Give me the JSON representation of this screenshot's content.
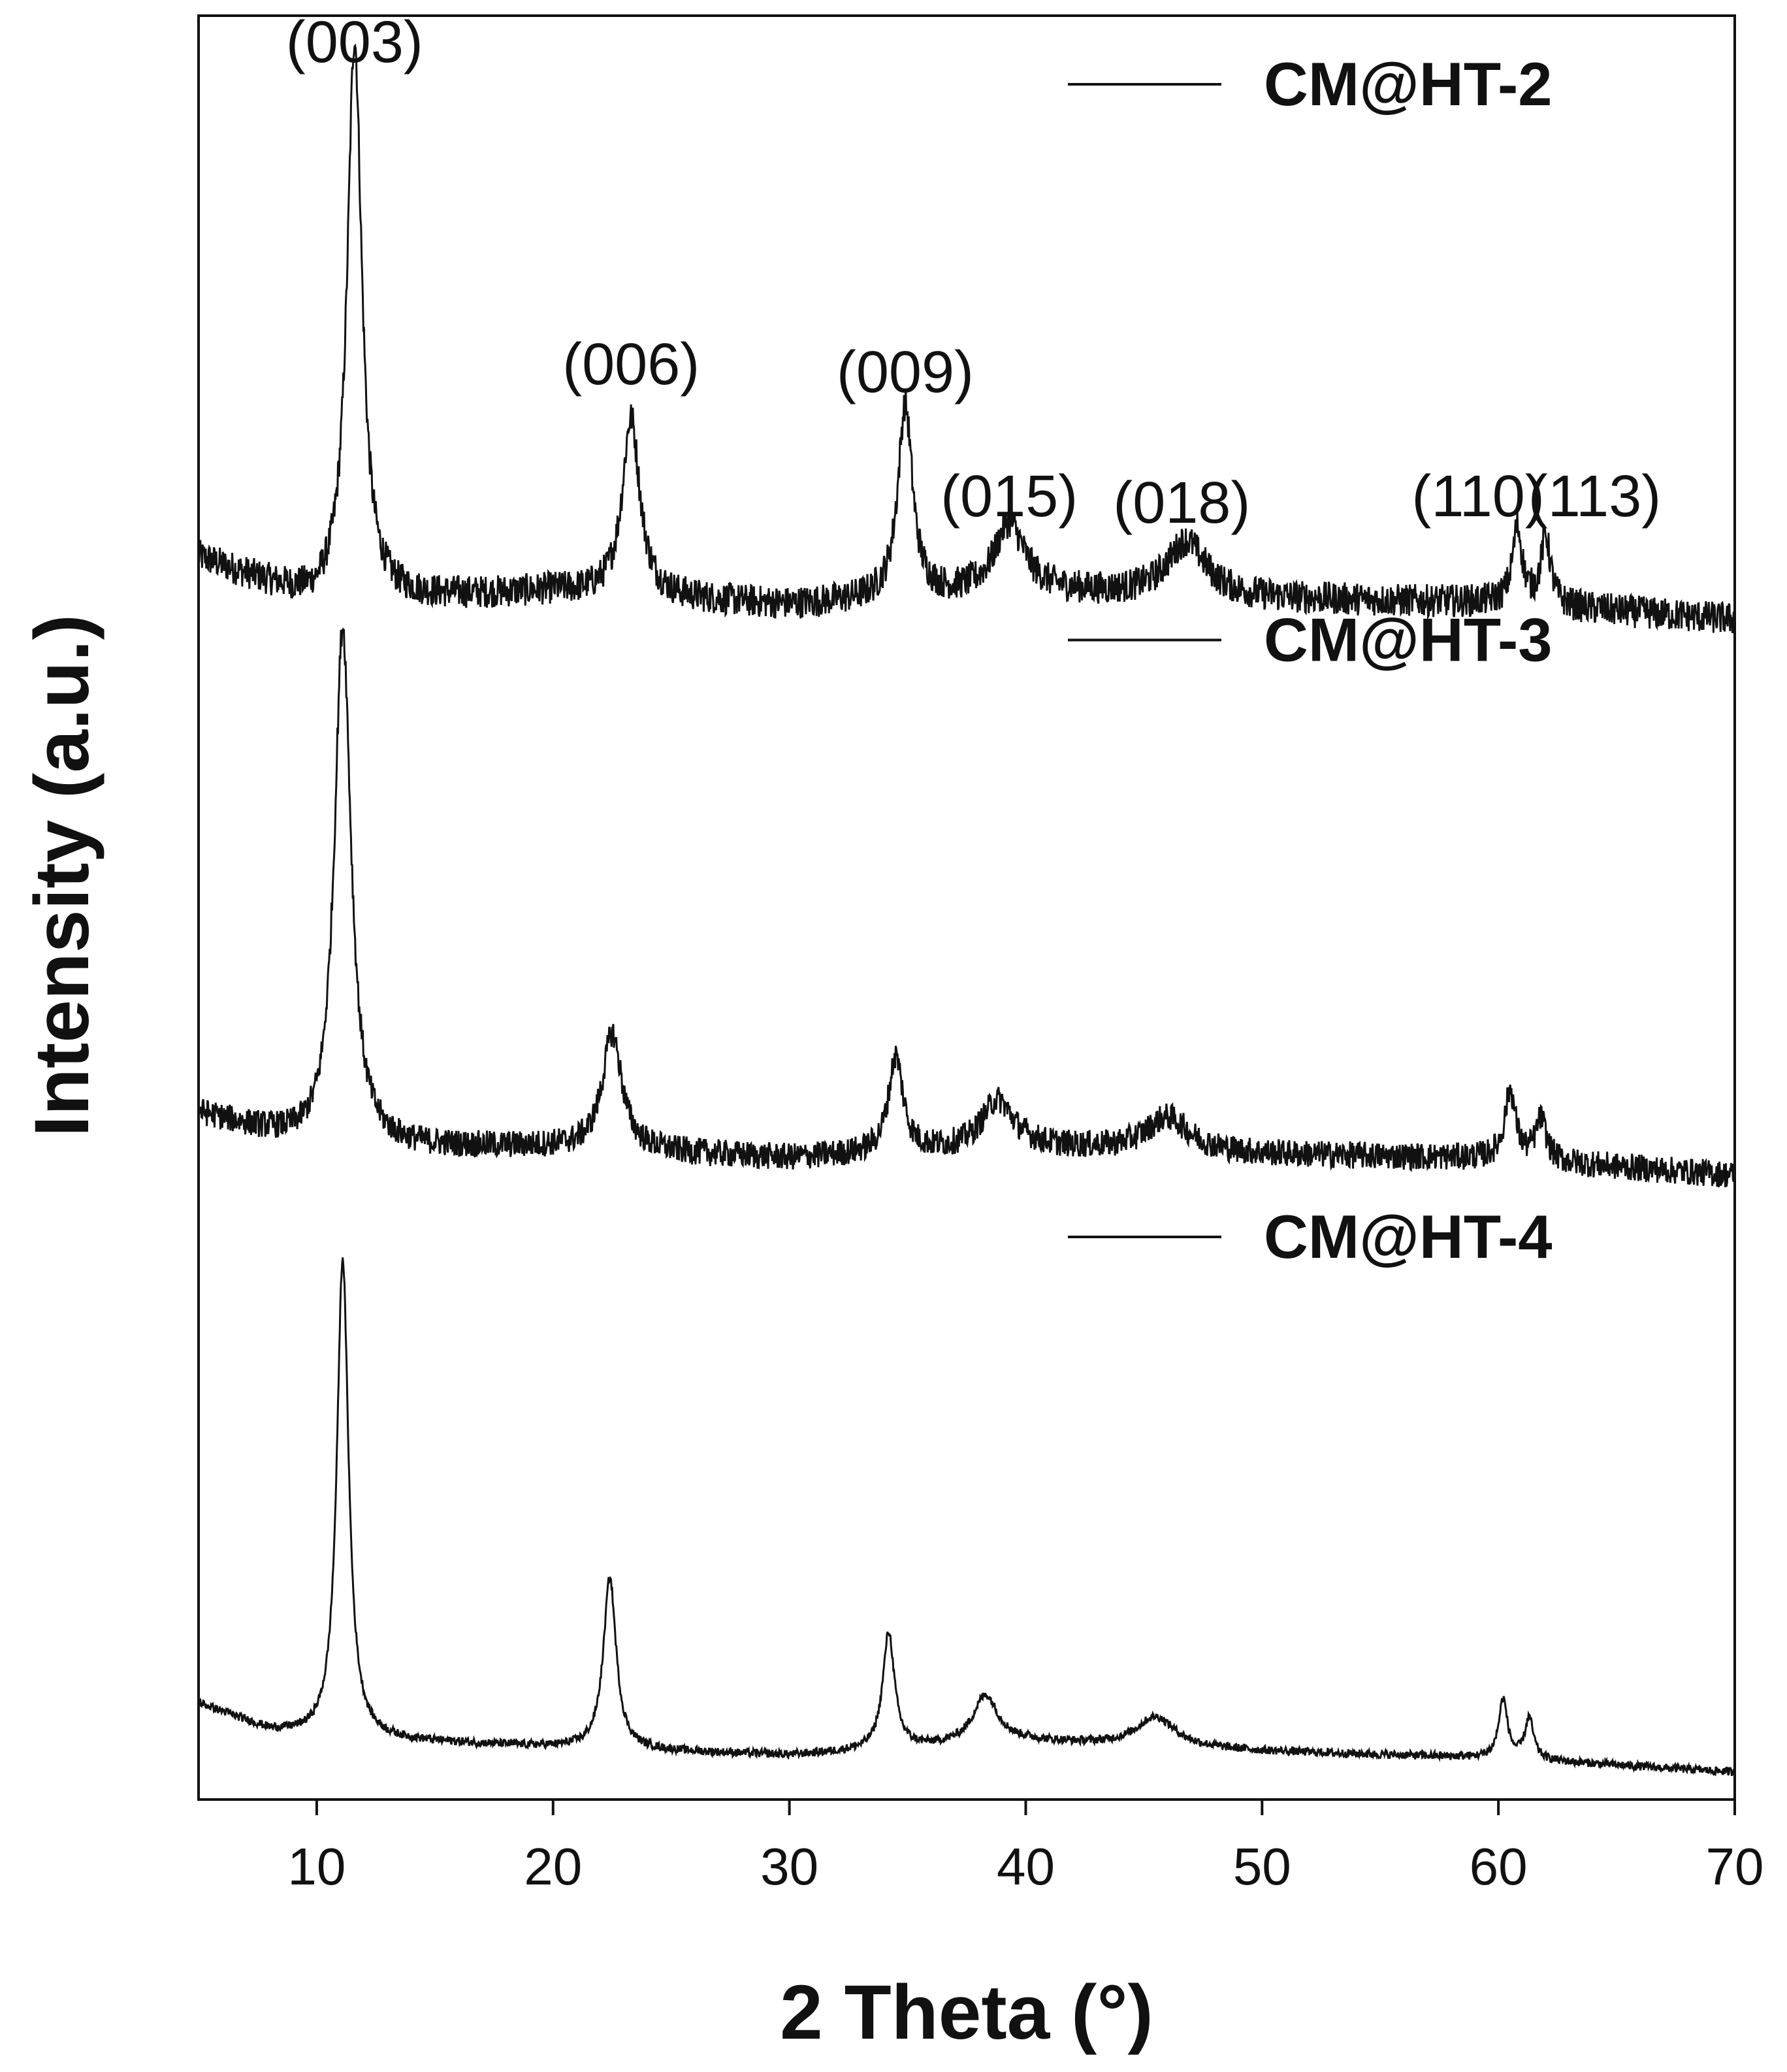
{
  "chart_data": {
    "type": "line",
    "title": "",
    "xlabel": "2 Theta (°)",
    "ylabel": "Intensity (a.u.)",
    "xlim": [
      5,
      70
    ],
    "xticks": [
      10,
      20,
      30,
      40,
      50,
      60,
      70
    ],
    "ylim": [
      0,
      1.3
    ],
    "grid": false,
    "legend_position": "right, one entry beside each trace",
    "peak_labels": [
      {
        "text": "(003)",
        "x": 11.6
      },
      {
        "text": "(006)",
        "x": 23.3
      },
      {
        "text": "(009)",
        "x": 34.9
      },
      {
        "text": "(015)",
        "x": 39.3
      },
      {
        "text": "(018)",
        "x": 46.6
      },
      {
        "text": "(110)",
        "x": 60.8
      },
      {
        "text": "(113)",
        "x": 62.0
      }
    ],
    "series": [
      {
        "name": "CM@HT-2",
        "color": "#111111",
        "offset": 0.86,
        "noise": 0.012,
        "baseline": [
          [
            5,
            0.045
          ],
          [
            10,
            0.012
          ],
          [
            20,
            0.02
          ],
          [
            30,
            0.01
          ],
          [
            40,
            0.02
          ],
          [
            50,
            0.015
          ],
          [
            60,
            0.012
          ],
          [
            70,
            0.0
          ]
        ],
        "peaks": [
          {
            "x": 11.6,
            "height": 0.41,
            "width": 0.75
          },
          {
            "x": 23.3,
            "height": 0.13,
            "width": 0.9
          },
          {
            "x": 34.9,
            "height": 0.14,
            "width": 0.75
          },
          {
            "x": 39.3,
            "height": 0.05,
            "width": 1.5
          },
          {
            "x": 46.8,
            "height": 0.04,
            "width": 2.0
          },
          {
            "x": 60.8,
            "height": 0.055,
            "width": 0.5
          },
          {
            "x": 62.0,
            "height": 0.05,
            "width": 0.5
          }
        ]
      },
      {
        "name": "CM@HT-3",
        "color": "#111111",
        "offset": 0.455,
        "noise": 0.01,
        "baseline": [
          [
            5,
            0.045
          ],
          [
            10,
            0.02
          ],
          [
            20,
            0.02
          ],
          [
            30,
            0.012
          ],
          [
            40,
            0.02
          ],
          [
            50,
            0.015
          ],
          [
            60,
            0.012
          ],
          [
            70,
            0.0
          ]
        ],
        "peaks": [
          {
            "x": 11.1,
            "height": 0.38,
            "width": 0.85
          },
          {
            "x": 22.5,
            "height": 0.085,
            "width": 1.0
          },
          {
            "x": 34.5,
            "height": 0.07,
            "width": 0.75
          },
          {
            "x": 38.8,
            "height": 0.035,
            "width": 1.6
          },
          {
            "x": 46.0,
            "height": 0.025,
            "width": 2.2
          },
          {
            "x": 60.5,
            "height": 0.05,
            "width": 0.55
          },
          {
            "x": 61.8,
            "height": 0.03,
            "width": 0.55
          }
        ]
      },
      {
        "name": "CM@HT-4",
        "color": "#111111",
        "offset": 0.02,
        "noise": 0.003,
        "baseline": [
          [
            5,
            0.05
          ],
          [
            8,
            0.03
          ],
          [
            10,
            0.025
          ],
          [
            20,
            0.018
          ],
          [
            30,
            0.012
          ],
          [
            40,
            0.022
          ],
          [
            50,
            0.015
          ],
          [
            60,
            0.01
          ],
          [
            70,
            0.0
          ]
        ],
        "peaks": [
          {
            "x": 11.1,
            "height": 0.35,
            "width": 0.6
          },
          {
            "x": 22.4,
            "height": 0.125,
            "width": 0.65
          },
          {
            "x": 34.2,
            "height": 0.085,
            "width": 0.6
          },
          {
            "x": 38.3,
            "height": 0.035,
            "width": 1.3
          },
          {
            "x": 45.5,
            "height": 0.022,
            "width": 2.0
          },
          {
            "x": 60.2,
            "height": 0.043,
            "width": 0.45
          },
          {
            "x": 61.3,
            "height": 0.03,
            "width": 0.45
          }
        ]
      }
    ]
  }
}
